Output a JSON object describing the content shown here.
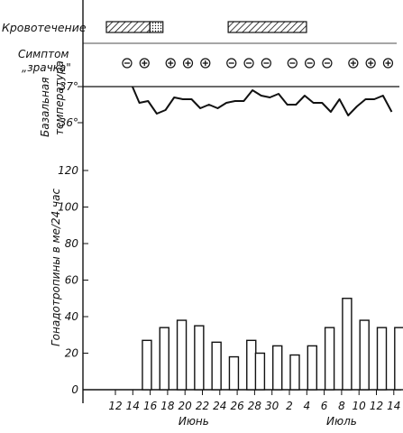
{
  "chart_data": {
    "type": "bar",
    "rows": {
      "bleeding_label": "Кровотечение",
      "pupil_label_line1": "Симптом",
      "pupil_label_line2": "„зрачка\"",
      "temp_label_line1": "Базальная",
      "temp_label_line2": "температура",
      "gonado_label": "Гонадотропины в ме/24 час"
    },
    "bleeding_periods": [
      {
        "from_day": 0,
        "to_day": 5,
        "pattern": "hatched"
      },
      {
        "from_day": 5,
        "to_day": 6.5,
        "pattern": "dotted"
      },
      {
        "from_day": 14,
        "to_day": 23,
        "pattern": "hatched"
      }
    ],
    "pupil_symptom": [
      {
        "day": 3,
        "sign": "−"
      },
      {
        "day": 5,
        "sign": "+"
      },
      {
        "day": 8,
        "sign": "+"
      },
      {
        "day": 10,
        "sign": "+"
      },
      {
        "day": 12,
        "sign": "+"
      },
      {
        "day": 15,
        "sign": "−"
      },
      {
        "day": 17,
        "sign": "−"
      },
      {
        "day": 19,
        "sign": "−"
      },
      {
        "day": 22,
        "sign": "−"
      },
      {
        "day": 24,
        "sign": "−"
      },
      {
        "day": 26,
        "sign": "−"
      },
      {
        "day": 29,
        "sign": "+"
      },
      {
        "day": 31,
        "sign": "+"
      },
      {
        "day": 33,
        "sign": "+"
      }
    ],
    "temperature": {
      "ticks": [
        {
          "label": "37°",
          "value": 37
        },
        {
          "label": "36°",
          "value": 36
        }
      ],
      "reference": 37,
      "points": [
        {
          "day": 3.2,
          "t": 37.0
        },
        {
          "day": 4,
          "t": 36.55
        },
        {
          "day": 5,
          "t": 36.6
        },
        {
          "day": 6,
          "t": 36.25
        },
        {
          "day": 7,
          "t": 36.35
        },
        {
          "day": 8,
          "t": 36.7
        },
        {
          "day": 9,
          "t": 36.65
        },
        {
          "day": 10,
          "t": 36.65
        },
        {
          "day": 11,
          "t": 36.4
        },
        {
          "day": 12,
          "t": 36.5
        },
        {
          "day": 13,
          "t": 36.4
        },
        {
          "day": 14,
          "t": 36.55
        },
        {
          "day": 15,
          "t": 36.6
        },
        {
          "day": 16,
          "t": 36.6
        },
        {
          "day": 17,
          "t": 36.9
        },
        {
          "day": 18,
          "t": 36.75
        },
        {
          "day": 19,
          "t": 36.7
        },
        {
          "day": 20,
          "t": 36.8
        },
        {
          "day": 21,
          "t": 36.5
        },
        {
          "day": 22,
          "t": 36.5
        },
        {
          "day": 23,
          "t": 36.75
        },
        {
          "day": 24,
          "t": 36.55
        },
        {
          "day": 25,
          "t": 36.55
        },
        {
          "day": 26,
          "t": 36.3
        },
        {
          "day": 27,
          "t": 36.65
        },
        {
          "day": 28,
          "t": 36.2
        },
        {
          "day": 29,
          "t": 36.45
        },
        {
          "day": 30,
          "t": 36.65
        },
        {
          "day": 31,
          "t": 36.65
        },
        {
          "day": 32,
          "t": 36.75
        },
        {
          "day": 33,
          "t": 36.3
        }
      ]
    },
    "gonadotropins": {
      "yticks": [
        0,
        20,
        40,
        60,
        80,
        100,
        120
      ],
      "bars": [
        {
          "day": 3,
          "value": 27
        },
        {
          "day": 5,
          "value": 34
        },
        {
          "day": 7,
          "value": 38
        },
        {
          "day": 9,
          "value": 35
        },
        {
          "day": 11,
          "value": 26
        },
        {
          "day": 13,
          "value": 18
        },
        {
          "day": 15,
          "value": 27
        },
        {
          "day": 16,
          "value": 20
        },
        {
          "day": 18,
          "value": 24
        },
        {
          "day": 20,
          "value": 19
        },
        {
          "day": 22,
          "value": 24
        },
        {
          "day": 24,
          "value": 34
        },
        {
          "day": 26,
          "value": 50
        },
        {
          "day": 28,
          "value": 38
        },
        {
          "day": 30,
          "value": 34
        },
        {
          "day": 32,
          "value": 34
        }
      ]
    },
    "x_axis": {
      "ticks": [
        {
          "day": 0,
          "label": "12"
        },
        {
          "day": 2,
          "label": "14"
        },
        {
          "day": 4,
          "label": "16"
        },
        {
          "day": 6,
          "label": "18"
        },
        {
          "day": 8,
          "label": "20"
        },
        {
          "day": 10,
          "label": "22"
        },
        {
          "day": 12,
          "label": "24"
        },
        {
          "day": 14,
          "label": "26"
        },
        {
          "day": 16,
          "label": "28"
        },
        {
          "day": 18,
          "label": "30"
        },
        {
          "day": 20,
          "label": "2"
        },
        {
          "day": 22,
          "label": "4"
        },
        {
          "day": 24,
          "label": "6"
        },
        {
          "day": 26,
          "label": "8"
        },
        {
          "day": 28,
          "label": "10"
        },
        {
          "day": 30,
          "label": "12"
        },
        {
          "day": 32,
          "label": "14"
        }
      ],
      "months": [
        {
          "day": 9,
          "label": "Июнь"
        },
        {
          "day": 26,
          "label": "Июль"
        }
      ]
    }
  }
}
